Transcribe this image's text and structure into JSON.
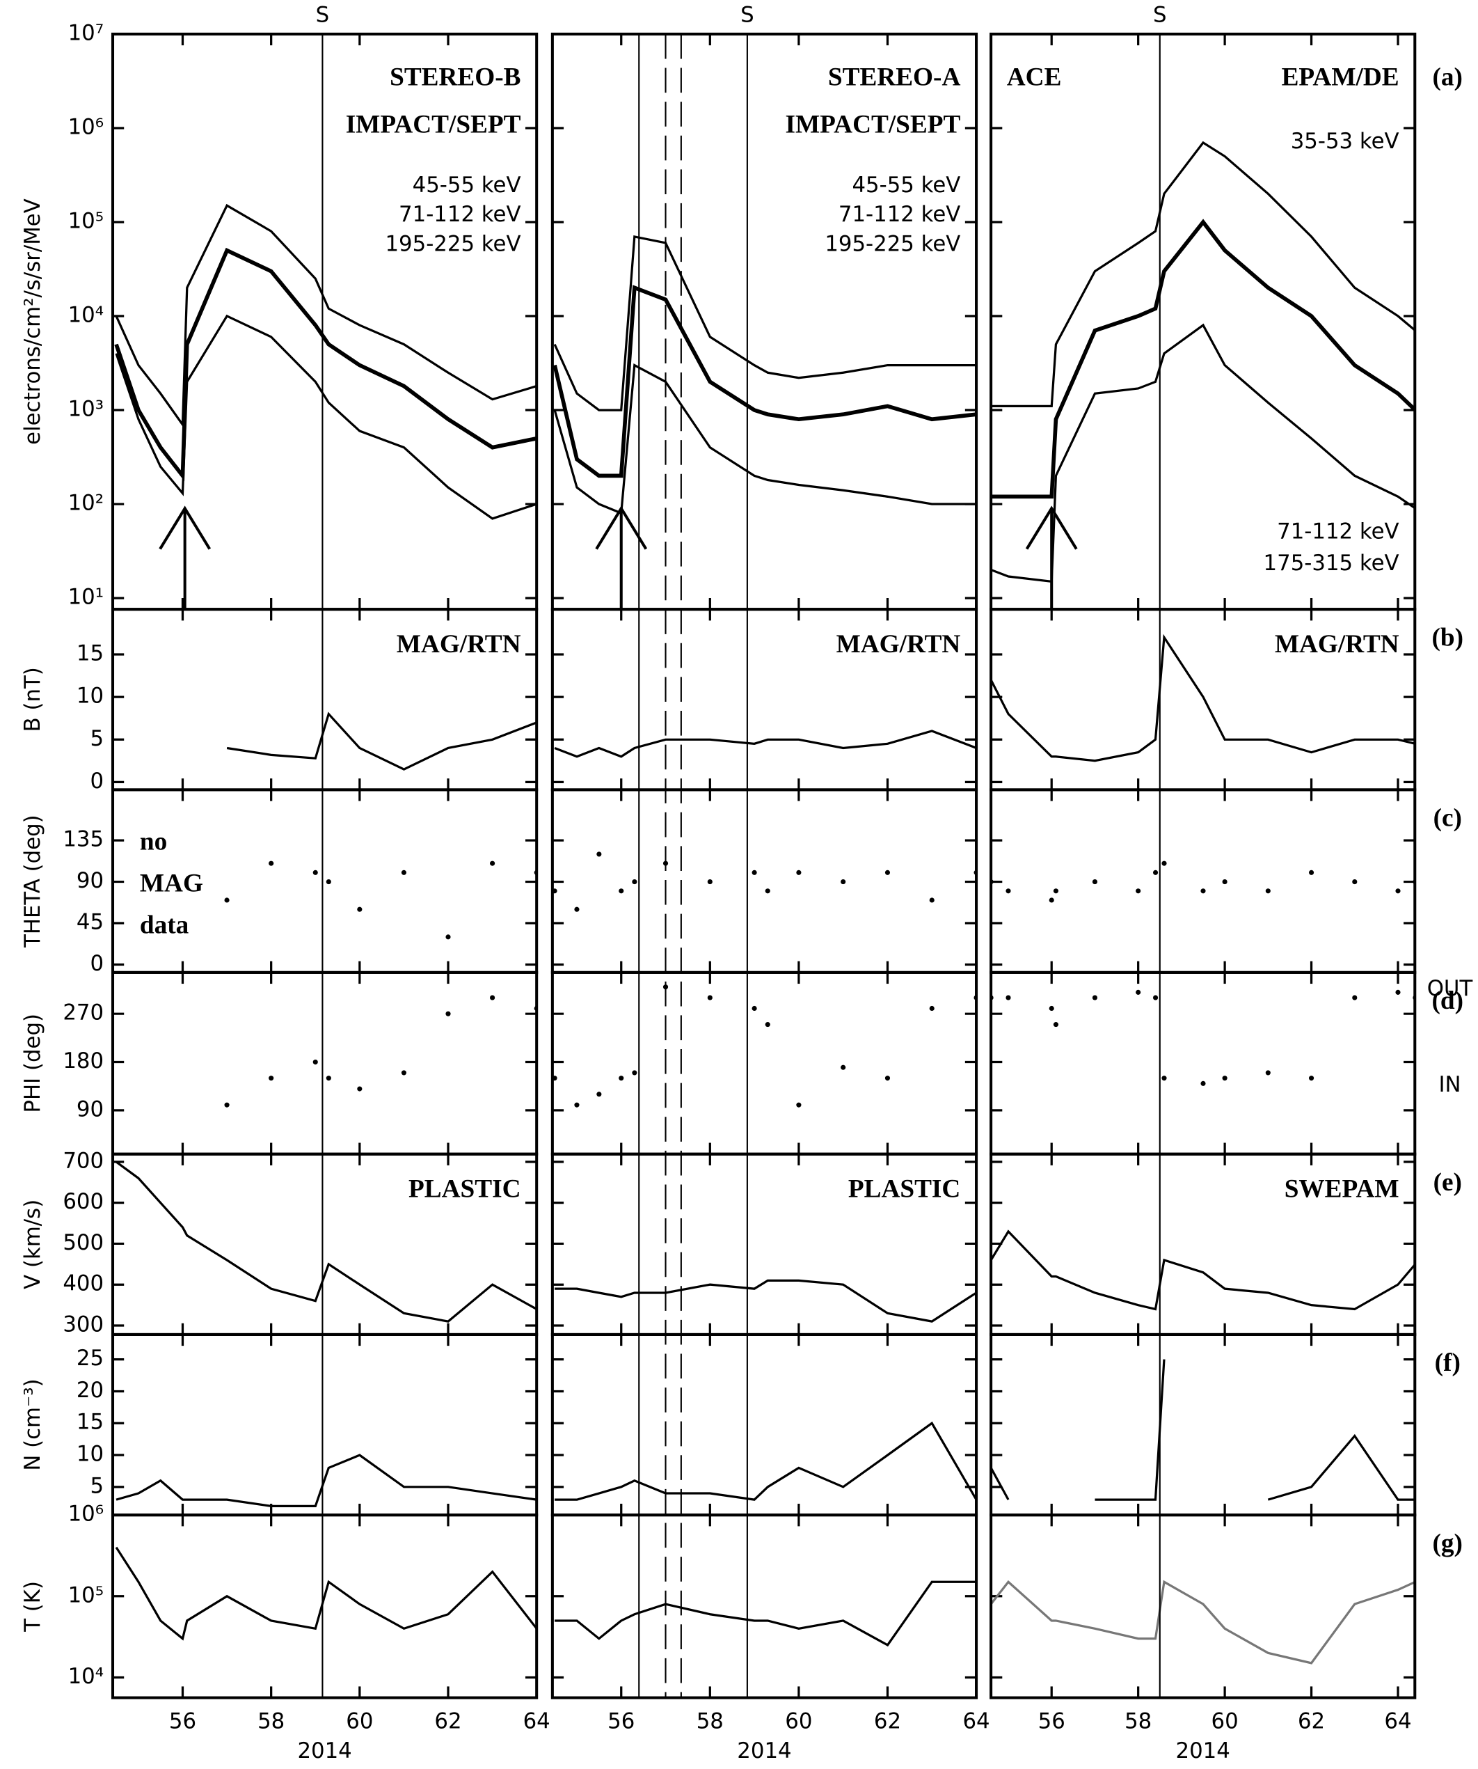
{
  "x_axes": [
    {
      "xlim": [
        54.42,
        64
      ],
      "xticks": [
        56,
        58,
        60,
        62,
        64
      ],
      "xlabel": "2014",
      "x": [
        54.5,
        55,
        55.5,
        56,
        56.1,
        57,
        58,
        59,
        59.3,
        60,
        61,
        62,
        63,
        64
      ],
      "shock": {
        "label": "S",
        "x": 59.16
      },
      "arrow": [
        56.05,
        90
      ],
      "lines": [],
      "dashed": []
    },
    {
      "xlim": [
        54.45,
        64
      ],
      "xticks": [
        56,
        58,
        60,
        62,
        64
      ],
      "xlabel": "2014",
      "x": [
        54.5,
        55,
        55.5,
        56,
        56.3,
        57,
        58,
        59,
        59.3,
        60,
        61,
        62,
        63,
        64
      ],
      "shock": {
        "label": "S",
        "x": 58.84
      },
      "arrow": [
        56,
        90
      ],
      "lines": [
        56.4
      ],
      "dashed": [
        57.0,
        57.35
      ]
    },
    {
      "xlim": [
        54.6,
        64.39
      ],
      "xticks": [
        56,
        58,
        60,
        62,
        64
      ],
      "xlabel": "2014",
      "x": [
        54.6,
        55,
        56,
        56.1,
        57,
        58,
        58.4,
        58.6,
        59.5,
        60,
        61,
        62,
        63,
        64,
        64.4
      ],
      "shock": {
        "label": "S",
        "x": 58.5
      },
      "arrow": [
        56,
        90
      ],
      "lines": [],
      "dashed": []
    }
  ],
  "rows": [
    {
      "label": "(a)",
      "ylabel": "electrons/cm²/s/sr/MeV",
      "log": true,
      "ylim": [
        7.6,
        10000000
      ],
      "yticks": [
        {
          "value": 10,
          "label": "10¹"
        },
        {
          "value": 100,
          "label": "10²"
        },
        {
          "value": 1000,
          "label": "10³"
        },
        {
          "value": 10000,
          "label": "10⁴"
        },
        {
          "value": 100000,
          "label": "10⁵"
        },
        {
          "value": 1000000,
          "label": "10⁶"
        },
        {
          "value": 10000000,
          "label": "10⁷"
        }
      ]
    },
    {
      "label": "(b)",
      "ylabel": "B (nT)",
      "log": false,
      "ylim": [
        -0.9,
        20.3
      ],
      "yticks": [
        0,
        5,
        10,
        15
      ]
    },
    {
      "label": "(c)",
      "ylabel": "THETA (deg)",
      "log": false,
      "ylim": [
        -8.6,
        190
      ],
      "yticks": [
        0,
        45,
        90,
        135
      ]
    },
    {
      "label": "(d)",
      "ylabel": "PHI (deg)",
      "log": false,
      "ylim": [
        8.4,
        347
      ],
      "yticks": [
        90,
        180,
        270
      ],
      "side_labels": [
        {
          "text": "OUT",
          "value": 315
        },
        {
          "text": "IN",
          "value": 136
        }
      ]
    },
    {
      "label": "(e)",
      "ylabel": "V (km/s)",
      "log": false,
      "ylim": [
        278,
        719
      ],
      "yticks": [
        300,
        400,
        500,
        600,
        700
      ]
    },
    {
      "label": "(f)",
      "ylabel": "N (cm⁻³)",
      "log": false,
      "ylim": [
        0.6,
        28.9
      ],
      "yticks": [
        5,
        10,
        15,
        20,
        25
      ]
    },
    {
      "label": "(g)",
      "ylabel": "T (K)",
      "log": true,
      "ylim": [
        5623,
        1000000
      ],
      "yticks": [
        {
          "value": 10000,
          "label": "10⁴"
        },
        {
          "value": 100000,
          "label": "10⁵"
        },
        {
          "value": 1000000,
          "label": "10⁶"
        }
      ]
    }
  ],
  "chart_data": [
    {
      "type": "line",
      "title": "STEREO-B",
      "subtitle": "IMPACT/SEPT",
      "legend": "upper right",
      "series": [
        {
          "name": "45-55 keV",
          "color": "#000000",
          "values": [
            10000,
            3000,
            1500,
            700,
            20000,
            150000,
            80000,
            25000,
            12000,
            8000,
            5000,
            2500,
            1300,
            1800
          ]
        },
        {
          "name": "71-112 keV",
          "color": "#000000",
          "values": [
            5000,
            1000,
            400,
            200,
            5000,
            50000,
            30000,
            8000,
            5000,
            3000,
            1800,
            800,
            400,
            500
          ]
        },
        {
          "name": "195-225 keV",
          "color": "#000000",
          "values": [
            4000,
            800,
            250,
            130,
            2000,
            10000,
            6000,
            2000,
            1200,
            600,
            400,
            150,
            70,
            100
          ]
        }
      ]
    },
    {
      "type": "line",
      "title": "STEREO-A",
      "subtitle": "IMPACT/SEPT",
      "legend": "upper right",
      "series": [
        {
          "name": "45-55 keV",
          "color": "#000000",
          "values": [
            5000,
            1500,
            1000,
            1000,
            70000,
            60000,
            6000,
            3000,
            2500,
            2200,
            2500,
            3000,
            3000,
            3000
          ]
        },
        {
          "name": "71-112 keV",
          "color": "#000000",
          "values": [
            3000,
            300,
            200,
            200,
            20000,
            15000,
            2000,
            1000,
            900,
            800,
            900,
            1100,
            800,
            900
          ]
        },
        {
          "name": "195-225 keV",
          "color": "#000000",
          "values": [
            1000,
            150,
            100,
            80,
            3000,
            2000,
            400,
            200,
            180,
            160,
            140,
            120,
            100,
            100
          ]
        }
      ]
    },
    {
      "type": "line",
      "title": "EPAM/DE",
      "label_left": "ACE",
      "legend": "split",
      "series": [
        {
          "name": "35-53 keV",
          "color": "#000000",
          "values": [
            1100,
            1100,
            1100,
            5000,
            30000,
            60000,
            80000,
            200000,
            700000,
            500000,
            200000,
            70000,
            20000,
            10000,
            7000
          ]
        },
        {
          "name": "71-112 keV",
          "color": "#000000",
          "values": [
            120,
            120,
            120,
            800,
            7000,
            10000,
            12000,
            30000,
            100000,
            50000,
            20000,
            10000,
            3000,
            1500,
            1000
          ]
        },
        {
          "name": "175-315 keV",
          "color": "#000000",
          "values": [
            20,
            17,
            15,
            200,
            1500,
            1700,
            2000,
            4000,
            8000,
            3000,
            1200,
            500,
            200,
            120,
            90
          ]
        }
      ]
    },
    {
      "type": "line",
      "title": "MAG/RTN",
      "series": [
        {
          "color": "#000000",
          "values": [
            null,
            null,
            null,
            null,
            null,
            4,
            3.2,
            2.8,
            8,
            4,
            1.5,
            4,
            5,
            7
          ]
        }
      ]
    },
    {
      "type": "line",
      "title": "MAG/RTN",
      "series": [
        {
          "color": "#000000",
          "values": [
            4,
            3,
            4,
            3,
            4,
            5,
            5,
            4.5,
            5,
            5,
            4,
            4.5,
            6,
            4
          ]
        }
      ]
    },
    {
      "type": "line",
      "title": "MAG/RTN",
      "series": [
        {
          "color": "#000000",
          "values": [
            12,
            8,
            3,
            3,
            2.5,
            3.5,
            5,
            17,
            10,
            5,
            5,
            3.5,
            5,
            5,
            4.5
          ]
        }
      ]
    },
    {
      "type": "scatter",
      "note": [
        "no",
        "MAG",
        "data"
      ],
      "series": [
        {
          "color": "#000000",
          "values": [
            null,
            null,
            null,
            null,
            null,
            70,
            110,
            100,
            90,
            60,
            100,
            30,
            110,
            100
          ]
        }
      ]
    },
    {
      "type": "scatter",
      "series": [
        {
          "color": "#000000",
          "values": [
            80,
            60,
            120,
            80,
            90,
            110,
            90,
            100,
            80,
            100,
            90,
            100,
            70,
            100
          ]
        }
      ]
    },
    {
      "type": "scatter",
      "series": [
        {
          "color": "#000000",
          "values": [
            90,
            80,
            70,
            80,
            90,
            80,
            100,
            110,
            80,
            90,
            80,
            100,
            90,
            80,
            90
          ]
        }
      ]
    },
    {
      "type": "scatter",
      "series": [
        {
          "color": "#000000",
          "values": [
            null,
            null,
            null,
            null,
            null,
            100,
            150,
            180,
            150,
            130,
            160,
            270,
            300,
            280
          ]
        }
      ]
    },
    {
      "type": "scatter",
      "series": [
        {
          "color": "#000000",
          "values": [
            150,
            100,
            120,
            150,
            160,
            320,
            300,
            280,
            250,
            100,
            170,
            150,
            280,
            300
          ]
        }
      ]
    },
    {
      "type": "scatter",
      "series": [
        {
          "color": "#000000",
          "values": [
            300,
            300,
            280,
            250,
            300,
            310,
            300,
            150,
            140,
            150,
            160,
            150,
            300,
            310,
            300
          ]
        }
      ]
    },
    {
      "type": "line",
      "title": "PLASTIC",
      "series": [
        {
          "color": "#000000",
          "values": [
            700,
            660,
            600,
            540,
            520,
            460,
            390,
            360,
            450,
            400,
            330,
            310,
            400,
            340
          ]
        }
      ]
    },
    {
      "type": "line",
      "title": "PLASTIC",
      "series": [
        {
          "color": "#000000",
          "values": [
            390,
            390,
            380,
            370,
            380,
            380,
            400,
            390,
            410,
            410,
            400,
            330,
            310,
            380
          ]
        }
      ]
    },
    {
      "type": "line",
      "title": "SWEPAM",
      "series": [
        {
          "color": "#000000",
          "values": [
            460,
            530,
            420,
            420,
            380,
            350,
            340,
            460,
            430,
            390,
            380,
            350,
            340,
            400,
            450
          ]
        }
      ]
    },
    {
      "type": "line",
      "series": [
        {
          "color": "#000000",
          "values": [
            3,
            4,
            6,
            3,
            3,
            3,
            2,
            2,
            8,
            10,
            5,
            5,
            4,
            3
          ]
        }
      ]
    },
    {
      "type": "line",
      "series": [
        {
          "color": "#000000",
          "values": [
            3,
            3,
            4,
            5,
            6,
            4,
            4,
            3,
            5,
            8,
            5,
            10,
            15,
            3
          ]
        }
      ]
    },
    {
      "type": "line",
      "series": [
        {
          "color": "#000000",
          "values": [
            8,
            3,
            null,
            null,
            3,
            3,
            3,
            25,
            null,
            null,
            3,
            5,
            13,
            3,
            3
          ]
        }
      ]
    },
    {
      "type": "line",
      "series": [
        {
          "color": "#000000",
          "values": [
            400000,
            150000,
            50000,
            30000,
            50000,
            100000,
            50000,
            40000,
            150000,
            80000,
            40000,
            60000,
            200000,
            40000
          ]
        }
      ]
    },
    {
      "type": "line",
      "series": [
        {
          "color": "#000000",
          "values": [
            50000,
            50000,
            30000,
            50000,
            60000,
            80000,
            60000,
            50000,
            50000,
            40000,
            50000,
            25000,
            150000,
            150000
          ]
        }
      ]
    },
    {
      "type": "line",
      "series": [
        {
          "color": "#777777",
          "values": [
            80000,
            150000,
            50000,
            50000,
            40000,
            30000,
            30000,
            150000,
            80000,
            40000,
            20000,
            15000,
            80000,
            120000,
            150000
          ]
        }
      ]
    }
  ]
}
